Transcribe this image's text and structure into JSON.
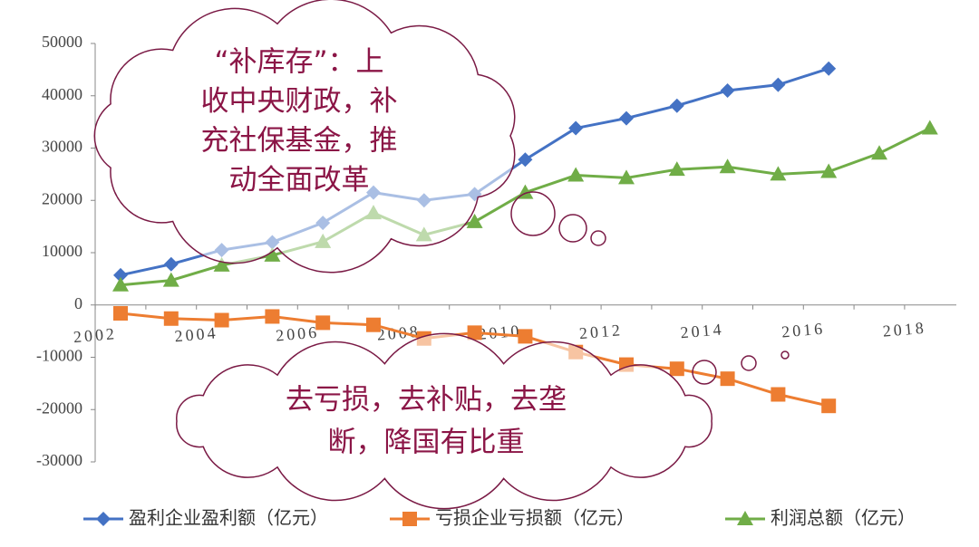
{
  "chart_data": {
    "type": "line",
    "categories": [
      "2002",
      null,
      "2004",
      null,
      "2006",
      null,
      "2008",
      null,
      "2010",
      null,
      "2012",
      null,
      "2014",
      null,
      "2016",
      null,
      "2018"
    ],
    "series": [
      {
        "name": "盈利企业盈利额（亿元）",
        "color": "#4472c4",
        "marker": "diamond",
        "values": [
          5700,
          7800,
          10500,
          12000,
          15700,
          21500,
          20000,
          21200,
          27800,
          33800,
          35700,
          38100,
          41000,
          42100,
          45200,
          null,
          null
        ]
      },
      {
        "name": "亏损企业亏损额（亿元）",
        "color": "#ed7d31",
        "marker": "square",
        "values": [
          -1600,
          -2600,
          -2900,
          -2200,
          -3400,
          -3800,
          -6400,
          -5300,
          -6000,
          -9000,
          -11400,
          -12200,
          -14100,
          -17100,
          -19300,
          null,
          null
        ]
      },
      {
        "name": "利润总额（亿元）",
        "color": "#70ad47",
        "marker": "triangle",
        "values": [
          3800,
          4700,
          7600,
          9500,
          12100,
          17600,
          13400,
          15900,
          21500,
          24800,
          24300,
          25900,
          26400,
          25000,
          25500,
          29000,
          33800
        ]
      }
    ],
    "ylim": [
      -30000,
      50000
    ],
    "yticks": [
      -30000,
      -20000,
      -10000,
      0,
      10000,
      20000,
      30000,
      40000,
      50000
    ],
    "legend": "bottom",
    "annotations": [
      {
        "lines": [
          "“补库存”：上",
          "收中央财政，补",
          "充社保基金，推",
          "动全面改革"
        ]
      },
      {
        "lines": [
          "去亏损，去补贴，去垄",
          "断，降国有比重"
        ]
      }
    ]
  }
}
